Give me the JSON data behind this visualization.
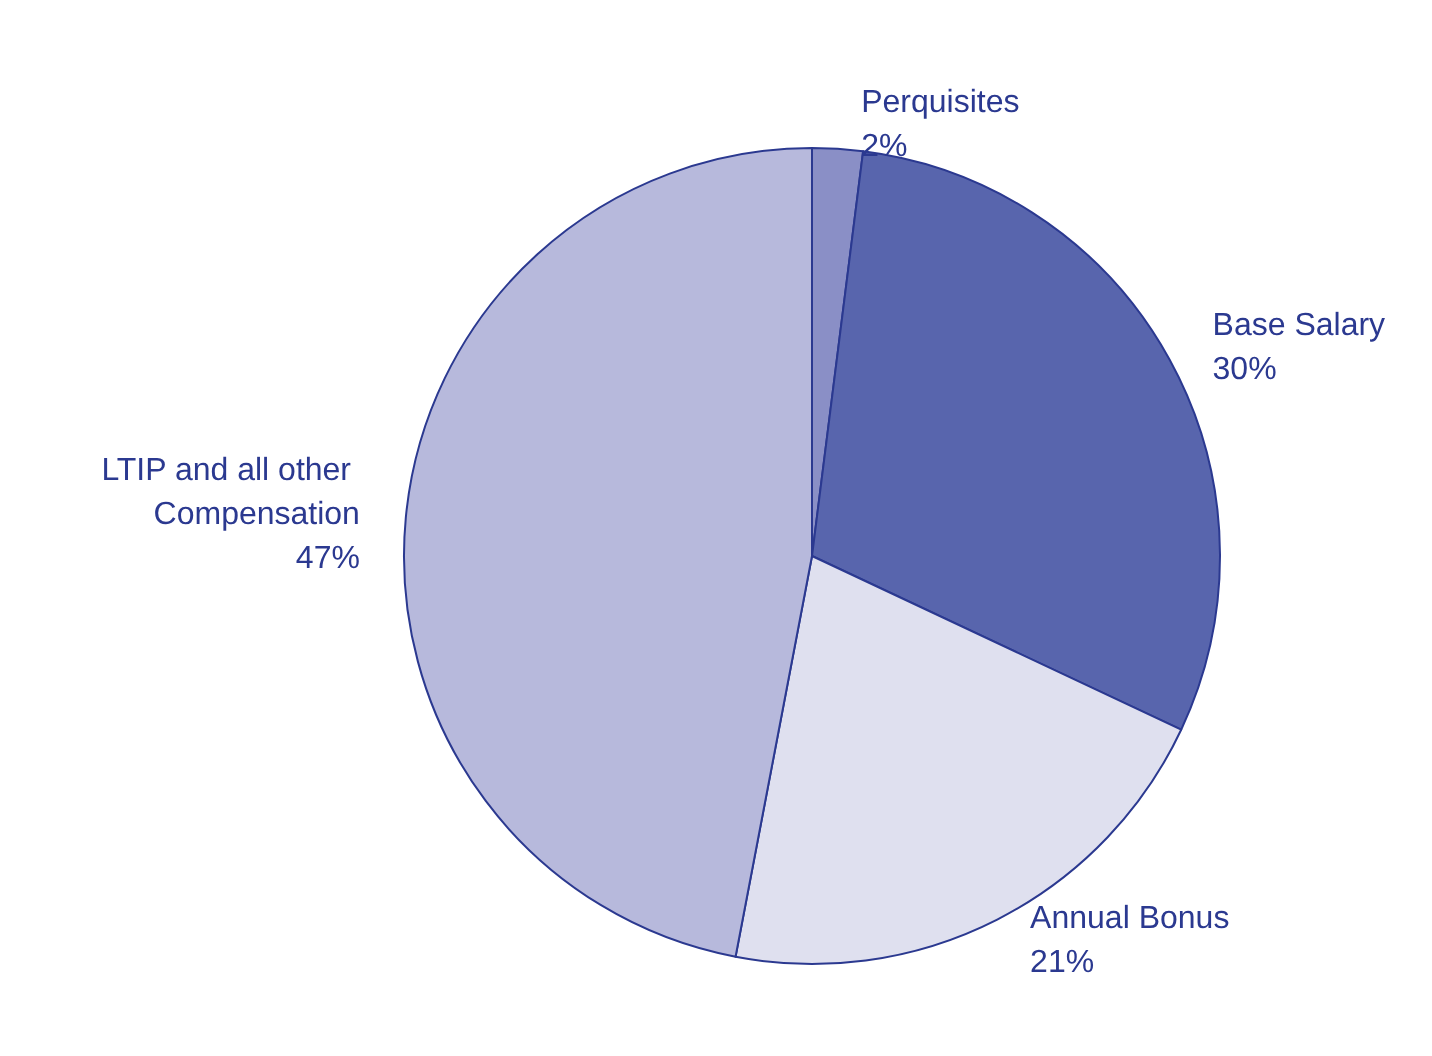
{
  "chart_data": {
    "type": "pie",
    "categories": [
      "Perquisites",
      "Base Salary",
      "Annual Bonus",
      "LTIP and all other Compensation"
    ],
    "values": [
      2,
      30,
      21,
      47
    ],
    "value_labels": [
      "2%",
      "30%",
      "21%",
      "47%"
    ],
    "colors": [
      "#8a8fc6",
      "#5865ad",
      "#dfe0ef",
      "#b7b9dc"
    ]
  }
}
